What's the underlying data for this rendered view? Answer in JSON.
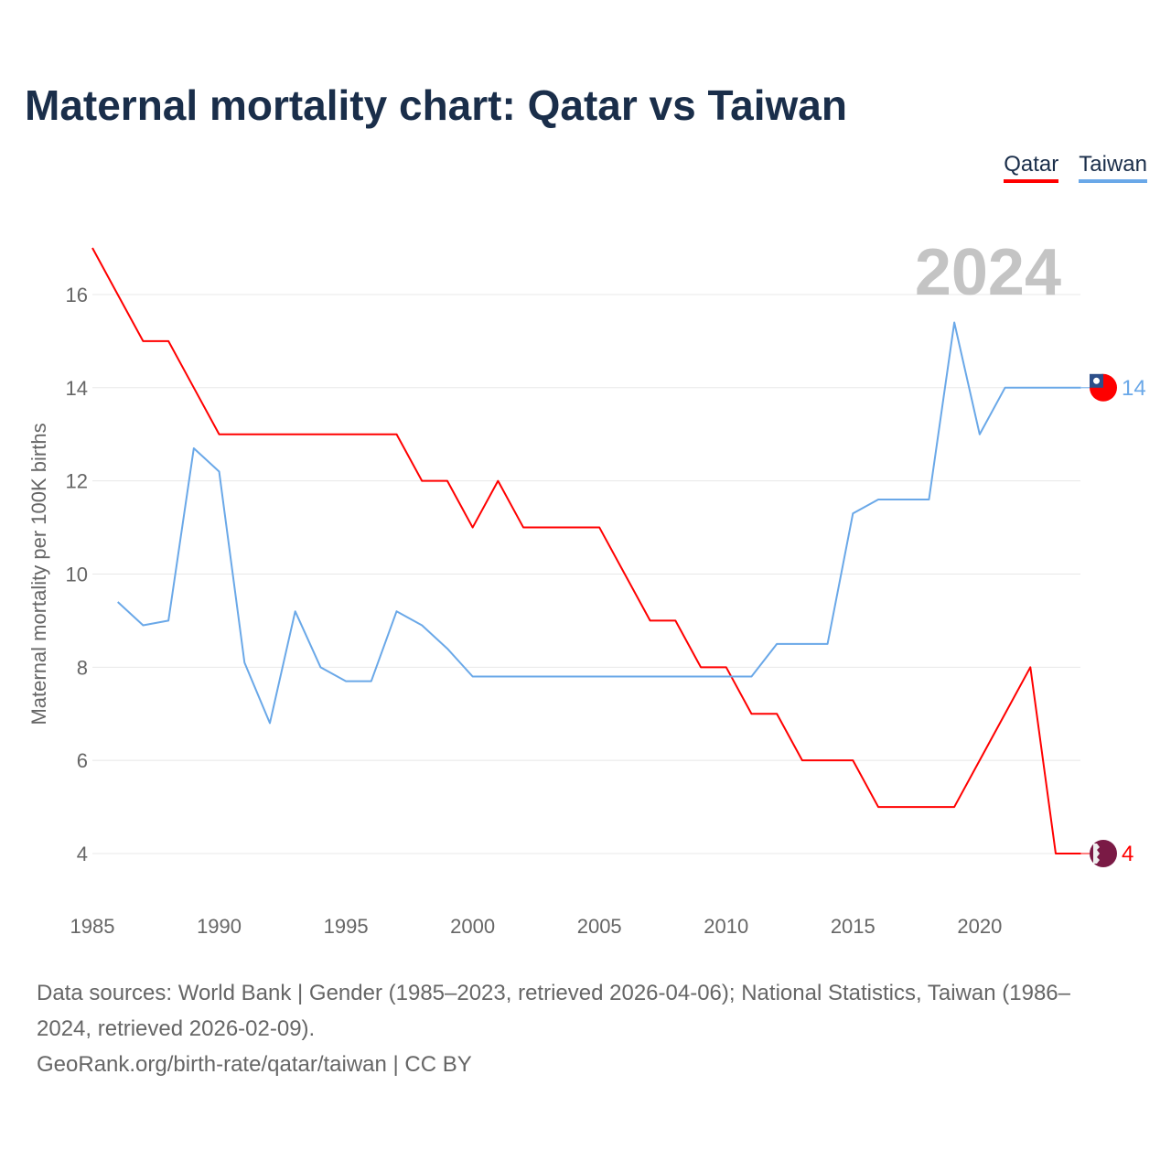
{
  "title": "Maternal mortality chart: Qatar vs Taiwan",
  "legend": [
    {
      "label": "Qatar",
      "color": "#ff0000"
    },
    {
      "label": "Taiwan",
      "color": "#6aa8e8"
    }
  ],
  "footer": {
    "sources": "Data sources: World Bank | Gender (1985–2023, retrieved 2026-04-06); National Statistics, Taiwan (1986–2024, retrieved 2026-02-09).",
    "credit": "GeoRank.org/birth-rate/qatar/taiwan | CC BY"
  },
  "chart_data": {
    "type": "line",
    "title": "Maternal mortality chart: Qatar vs Taiwan",
    "ylabel": "Maternal mortality per 100K births",
    "xlabel": "",
    "year_label": "2024",
    "xlim": [
      1985,
      2024
    ],
    "ylim": [
      3,
      17
    ],
    "xticks": [
      1985,
      1990,
      1995,
      2000,
      2005,
      2010,
      2015,
      2020
    ],
    "yticks": [
      4,
      6,
      8,
      10,
      12,
      14,
      16
    ],
    "series": [
      {
        "name": "Qatar",
        "color": "#ff0000",
        "end_label": "4",
        "x": [
          1985,
          1986,
          1987,
          1988,
          1989,
          1990,
          1991,
          1992,
          1993,
          1994,
          1995,
          1996,
          1997,
          1998,
          1999,
          2000,
          2001,
          2002,
          2003,
          2004,
          2005,
          2006,
          2007,
          2008,
          2009,
          2010,
          2011,
          2012,
          2013,
          2014,
          2015,
          2016,
          2017,
          2018,
          2019,
          2020,
          2021,
          2022,
          2023,
          2024
        ],
        "values": [
          17,
          16,
          15,
          15,
          14,
          13,
          13,
          13,
          13,
          13,
          13,
          13,
          13,
          12,
          12,
          11,
          12,
          11,
          11,
          11,
          11,
          10,
          9,
          9,
          8,
          8,
          7,
          7,
          6,
          6,
          6,
          5,
          5,
          5,
          5,
          6,
          7,
          8,
          4,
          4
        ]
      },
      {
        "name": "Taiwan",
        "color": "#6aa8e8",
        "end_label": "14",
        "x": [
          1986,
          1987,
          1988,
          1989,
          1990,
          1991,
          1992,
          1993,
          1994,
          1995,
          1996,
          1997,
          1998,
          1999,
          2000,
          2001,
          2002,
          2003,
          2004,
          2005,
          2006,
          2007,
          2008,
          2009,
          2010,
          2011,
          2012,
          2013,
          2014,
          2015,
          2016,
          2017,
          2018,
          2019,
          2020,
          2021,
          2022,
          2023,
          2024
        ],
        "values": [
          9.4,
          8.9,
          9.0,
          12.7,
          12.2,
          8.1,
          6.8,
          9.2,
          8.0,
          7.7,
          7.7,
          9.2,
          8.9,
          8.4,
          7.8,
          7.8,
          7.8,
          7.8,
          7.8,
          7.8,
          7.8,
          7.8,
          7.8,
          7.8,
          7.8,
          7.8,
          8.5,
          8.5,
          8.5,
          11.3,
          11.6,
          11.6,
          11.6,
          15.4,
          13.0,
          14.0,
          14.0,
          14.0,
          14.0
        ]
      }
    ]
  }
}
